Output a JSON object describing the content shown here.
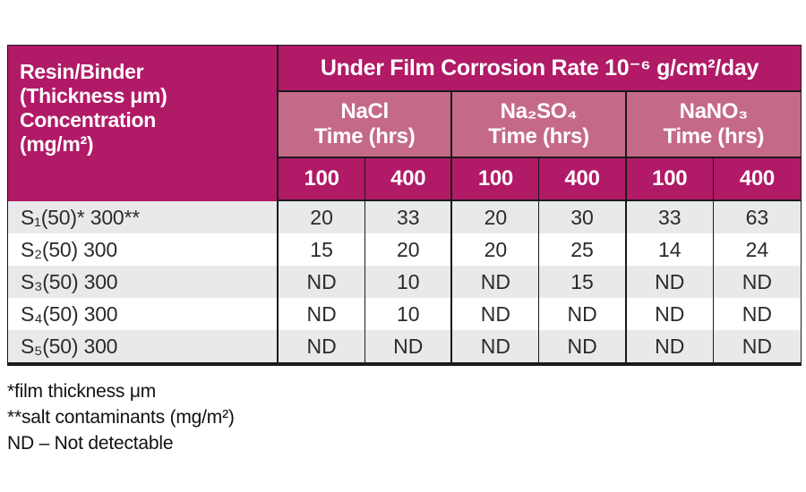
{
  "chart_data": {
    "type": "table",
    "title": "Under Film Corrosion Rate 10⁻⁶ g/cm²/day",
    "corner_header_lines": {
      "line1": "Resin/Binder",
      "line2": "(Thickness μm)",
      "line3": "Concentration",
      "line4": "(mg/m²)"
    },
    "salt_groups": [
      {
        "salt": "NaCl",
        "time_label": "Time (hrs)"
      },
      {
        "salt": "Na₂SO₄",
        "time_label": "Time (hrs)"
      },
      {
        "salt": "NaNO₃",
        "time_label": "Time (hrs)"
      }
    ],
    "time_points": [
      "100",
      "400",
      "100",
      "400",
      "100",
      "400"
    ],
    "rows": [
      {
        "label": "S₁(50)* 300**",
        "values": [
          "20",
          "33",
          "20",
          "30",
          "33",
          "63"
        ]
      },
      {
        "label": "S₂(50) 300",
        "values": [
          "15",
          "20",
          "20",
          "25",
          "14",
          "24"
        ]
      },
      {
        "label": "S₃(50) 300",
        "values": [
          "ND",
          "10",
          "ND",
          "15",
          "ND",
          "ND"
        ]
      },
      {
        "label": "S₄(50) 300",
        "values": [
          "ND",
          "10",
          "ND",
          "ND",
          "ND",
          "ND"
        ]
      },
      {
        "label": "S₅(50) 300",
        "values": [
          "ND",
          "ND",
          "ND",
          "ND",
          "ND",
          "ND"
        ]
      }
    ],
    "footnotes": [
      "*film thickness μm",
      "**salt contaminants (mg/m²)",
      "ND – Not detectable"
    ]
  },
  "colors": {
    "header_magenta": "#b01a66",
    "header_pink": "#c46a87",
    "row_gray": "#e8e9ea",
    "border_black": "#1a1a1a",
    "text_dark": "#2b2b2b"
  }
}
